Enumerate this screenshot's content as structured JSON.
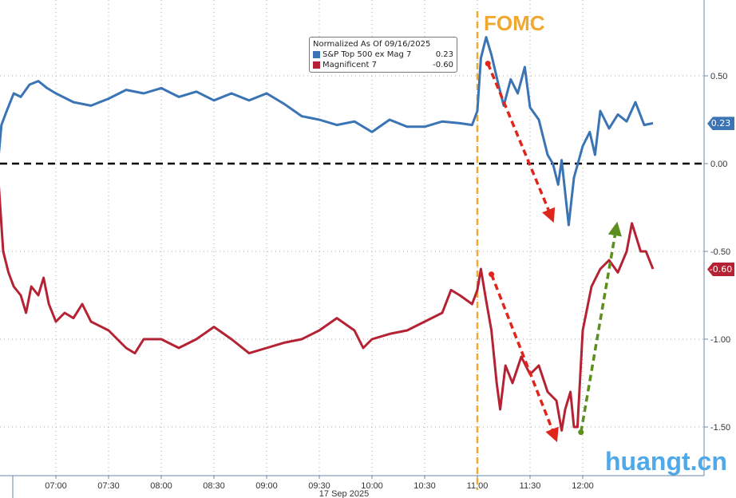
{
  "chart_data": {
    "type": "line",
    "title": "",
    "xlabel": "17 Sep 2025",
    "x_ticks": [
      "07:00",
      "07:30",
      "08:00",
      "08:30",
      "09:00",
      "09:30",
      "10:00",
      "10:30",
      "11:00",
      "11:30",
      "12:00"
    ],
    "y_ticks": [
      "0.50",
      "0.00",
      "-0.50",
      "-1.00",
      "-1.50"
    ],
    "y_tick_values": [
      0.5,
      0,
      -0.5,
      -1,
      -1.5
    ],
    "ylim": [
      -1.6,
      0.9
    ],
    "legend_title": "Normalized As Of 09/16/2025",
    "legend_placement": "top-center",
    "series": [
      {
        "name": "S&P Top 500 ex Mag 7",
        "last": "0.23",
        "color": "#3a74b4",
        "x": [
          "06:27",
          "06:29",
          "06:32",
          "06:36",
          "06:40",
          "06:45",
          "06:50",
          "06:55",
          "07:00",
          "07:10",
          "07:20",
          "07:30",
          "07:40",
          "07:50",
          "08:00",
          "08:10",
          "08:20",
          "08:30",
          "08:40",
          "08:50",
          "09:00",
          "09:10",
          "09:20",
          "09:30",
          "09:40",
          "09:50",
          "10:00",
          "10:10",
          "10:20",
          "10:30",
          "10:40",
          "10:50",
          "10:57",
          "11:00",
          "11:02",
          "11:05",
          "11:08",
          "11:12",
          "11:15",
          "11:19",
          "11:23",
          "11:27",
          "11:30",
          "11:35",
          "11:40",
          "11:43",
          "11:46",
          "11:48",
          "11:52",
          "11:55",
          "12:00",
          "12:04",
          "12:07",
          "12:10",
          "12:15",
          "12:20",
          "12:25",
          "12:30",
          "12:35",
          "12:40"
        ],
        "y": [
          0.0,
          0.22,
          0.3,
          0.4,
          0.38,
          0.45,
          0.47,
          0.43,
          0.4,
          0.35,
          0.33,
          0.37,
          0.42,
          0.4,
          0.43,
          0.38,
          0.41,
          0.36,
          0.4,
          0.36,
          0.4,
          0.34,
          0.27,
          0.25,
          0.22,
          0.24,
          0.18,
          0.25,
          0.21,
          0.21,
          0.24,
          0.23,
          0.22,
          0.3,
          0.6,
          0.72,
          0.62,
          0.45,
          0.33,
          0.48,
          0.4,
          0.55,
          0.32,
          0.25,
          0.05,
          0.0,
          -0.12,
          0.02,
          -0.35,
          -0.08,
          0.1,
          0.18,
          0.05,
          0.3,
          0.2,
          0.28,
          0.24,
          0.35,
          0.22,
          0.23
        ]
      },
      {
        "name": "Magnificent 7",
        "last": "-0.60",
        "color": "#b52233",
        "x": [
          "06:26",
          "06:28",
          "06:30",
          "06:33",
          "06:36",
          "06:40",
          "06:43",
          "06:46",
          "06:50",
          "06:53",
          "06:56",
          "07:00",
          "07:05",
          "07:10",
          "07:15",
          "07:20",
          "07:30",
          "07:40",
          "07:45",
          "07:50",
          "08:00",
          "08:10",
          "08:20",
          "08:30",
          "08:40",
          "08:50",
          "09:00",
          "09:10",
          "09:20",
          "09:30",
          "09:40",
          "09:50",
          "09:55",
          "10:00",
          "10:10",
          "10:20",
          "10:30",
          "10:40",
          "10:45",
          "10:50",
          "10:57",
          "11:00",
          "11:02",
          "11:05",
          "11:08",
          "11:11",
          "11:13",
          "11:16",
          "11:20",
          "11:25",
          "11:30",
          "11:35",
          "11:40",
          "11:45",
          "11:48",
          "11:50",
          "11:53",
          "11:55",
          "11:57",
          "12:00",
          "12:05",
          "12:10",
          "12:15",
          "12:20",
          "12:25",
          "12:28",
          "12:33",
          "12:36",
          "12:40"
        ],
        "y": [
          0.1,
          -0.2,
          -0.5,
          -0.62,
          -0.7,
          -0.75,
          -0.85,
          -0.7,
          -0.75,
          -0.65,
          -0.8,
          -0.9,
          -0.85,
          -0.88,
          -0.8,
          -0.9,
          -0.95,
          -1.05,
          -1.08,
          -1.0,
          -1.0,
          -1.05,
          -1.0,
          -0.93,
          -1.0,
          -1.08,
          -1.05,
          -1.02,
          -1.0,
          -0.95,
          -0.88,
          -0.95,
          -1.05,
          -1.0,
          -0.97,
          -0.95,
          -0.9,
          -0.85,
          -0.72,
          -0.75,
          -0.8,
          -0.72,
          -0.6,
          -0.78,
          -0.95,
          -1.25,
          -1.4,
          -1.15,
          -1.25,
          -1.1,
          -1.2,
          -1.15,
          -1.3,
          -1.35,
          -1.52,
          -1.4,
          -1.3,
          -1.5,
          -1.5,
          -0.95,
          -0.7,
          -0.6,
          -0.55,
          -0.62,
          -0.5,
          -0.34,
          -0.5,
          -0.5,
          -0.6
        ]
      }
    ],
    "annotations": {
      "event_line": {
        "x": "11:00",
        "label": "FOMC"
      },
      "arrows": [
        {
          "color": "#e0261b",
          "from": [
            "11:06",
            0.57
          ],
          "to": [
            "11:42",
            -0.3
          ]
        },
        {
          "color": "#e0261b",
          "from": [
            "11:08",
            -0.63
          ],
          "to": [
            "11:44",
            -1.55
          ]
        },
        {
          "color": "#5b8f1e",
          "from": [
            "11:59",
            -1.53
          ],
          "to": [
            "12:19",
            -0.37
          ]
        }
      ],
      "zero_line": 0
    }
  },
  "watermark": "huangt.cn"
}
